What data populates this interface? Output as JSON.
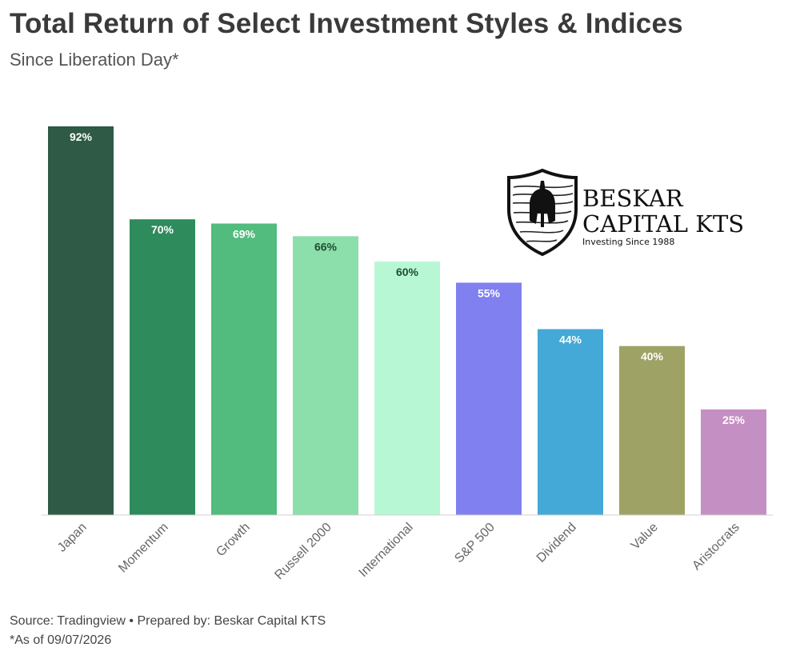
{
  "header": {
    "title": "Total Return of Select Investment Styles & Indices",
    "subtitle": "Since Liberation Day*"
  },
  "footer": {
    "source": "Source: Tradingview • Prepared by: Beskar Capital KTS",
    "note": "*As of 09/07/2026"
  },
  "logo": {
    "line1": "BESKAR",
    "line2": "CAPITAL KTS",
    "tagline": "Investing Since 1988",
    "icon": "spartan-helmet-shield-icon"
  },
  "chart_data": {
    "type": "bar",
    "categories": [
      "Japan",
      "Momentum",
      "Growth",
      "Russell 2000",
      "International",
      "S&P 500",
      "Dividend",
      "Value",
      "Aristocrats"
    ],
    "values": [
      92,
      70,
      69,
      66,
      60,
      55,
      44,
      40,
      25
    ],
    "data_labels": [
      "92%",
      "70%",
      "69%",
      "66%",
      "60%",
      "55%",
      "44%",
      "40%",
      "25%"
    ],
    "colors": [
      "#2f5a45",
      "#2e8b5b",
      "#52bb7e",
      "#8cdeaa",
      "#b8f7d4",
      "#8080f0",
      "#44a9d6",
      "#9ea265",
      "#c48fc2"
    ],
    "label_colors": [
      "#ffffff",
      "#ffffff",
      "#ffffff",
      "#1f4d33",
      "#1f4d33",
      "#ffffff",
      "#ffffff",
      "#ffffff",
      "#ffffff"
    ],
    "ylim": [
      0,
      92
    ],
    "grid": false,
    "legend": "none"
  }
}
